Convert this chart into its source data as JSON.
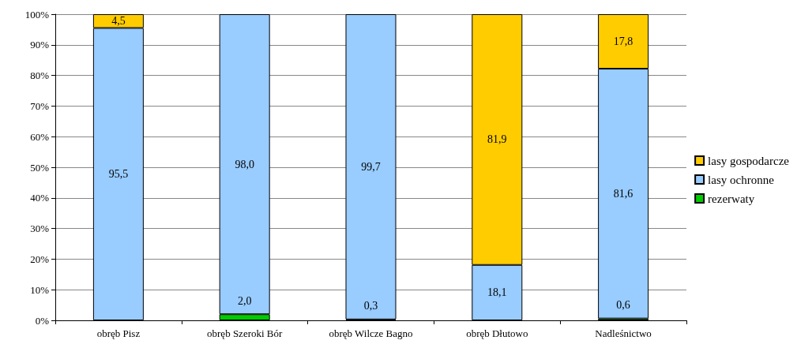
{
  "chart_data": {
    "type": "bar",
    "stacked": true,
    "categories": [
      "obręb Pisz",
      "obręb Szeroki Bór",
      "obręb Wilcze Bagno",
      "obręb Dłutowo",
      "Nadleśnictwo"
    ],
    "series": [
      {
        "name": "rezerwaty",
        "color": "#00cc00",
        "values": [
          0,
          2.0,
          0.3,
          0,
          0.6
        ],
        "value_labels": [
          null,
          "2,0",
          "0,3",
          null,
          "0,6"
        ]
      },
      {
        "name": "lasy ochronne",
        "color": "#99ccff",
        "values": [
          95.5,
          98.0,
          99.7,
          18.1,
          81.6
        ],
        "value_labels": [
          "95,5",
          "98,0",
          "99,7",
          "18,1",
          "81,6"
        ]
      },
      {
        "name": "lasy gospodarcze",
        "color": "#ffcc00",
        "values": [
          4.5,
          0,
          0,
          81.9,
          17.8
        ],
        "value_labels": [
          "4,5",
          null,
          null,
          "81,9",
          "17,8"
        ]
      }
    ],
    "ylim": [
      0,
      100
    ],
    "yticks": [
      {
        "value": 0,
        "label": "0%"
      },
      {
        "value": 10,
        "label": "10%"
      },
      {
        "value": 20,
        "label": "20%"
      },
      {
        "value": 30,
        "label": "30%"
      },
      {
        "value": 40,
        "label": "40%"
      },
      {
        "value": 50,
        "label": "50%"
      },
      {
        "value": 60,
        "label": "60%"
      },
      {
        "value": 70,
        "label": "70%"
      },
      {
        "value": 80,
        "label": "80%"
      },
      {
        "value": 90,
        "label": "90%"
      },
      {
        "value": 100,
        "label": "100%"
      }
    ],
    "grid": "y",
    "legend": "right"
  }
}
